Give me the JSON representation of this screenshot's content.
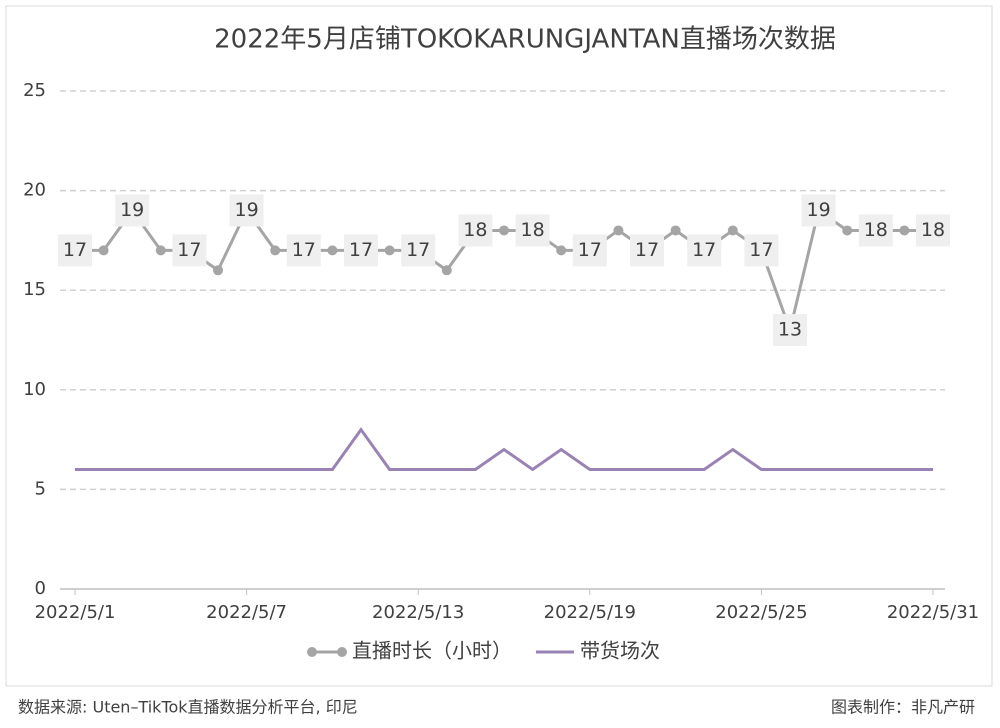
{
  "chart_data": {
    "type": "line",
    "title": "2022年5月店铺TOKOKARUNGJANTAN直播场次数据",
    "categories": [
      "2022/5/1",
      null,
      null,
      null,
      null,
      null,
      "2022/5/7",
      null,
      null,
      null,
      null,
      null,
      "2022/5/13",
      null,
      null,
      null,
      null,
      null,
      "2022/5/19",
      null,
      null,
      null,
      null,
      null,
      "2022/5/25",
      null,
      null,
      null,
      null,
      null,
      "2022/5/31"
    ],
    "series": [
      {
        "name": "直播时长（小时）",
        "color": "#a5a5a5",
        "markers": true,
        "data_labels": true,
        "values": [
          17,
          17,
          19,
          17,
          17,
          16,
          19,
          17,
          17,
          17,
          17,
          17,
          17,
          16,
          18,
          18,
          18,
          17,
          17,
          18,
          17,
          18,
          17,
          18,
          17,
          13,
          19,
          18,
          18,
          18,
          18
        ]
      },
      {
        "name": "带货场次",
        "color": "#9983b5",
        "markers": false,
        "data_labels": false,
        "values": [
          6,
          6,
          6,
          6,
          6,
          6,
          6,
          6,
          6,
          6,
          8,
          6,
          6,
          6,
          6,
          7,
          6,
          7,
          6,
          6,
          6,
          6,
          6,
          7,
          6,
          6,
          6,
          6,
          6,
          6,
          6
        ]
      }
    ],
    "ylim": [
      0,
      25
    ],
    "yticks": [
      0,
      5,
      10,
      15,
      20,
      25
    ],
    "grid": true,
    "legend": "bottom"
  },
  "footer": {
    "source": "数据来源: Uten–TikTok直播数据分析平台, 印尼",
    "credit": "图表制作：非凡产研"
  }
}
